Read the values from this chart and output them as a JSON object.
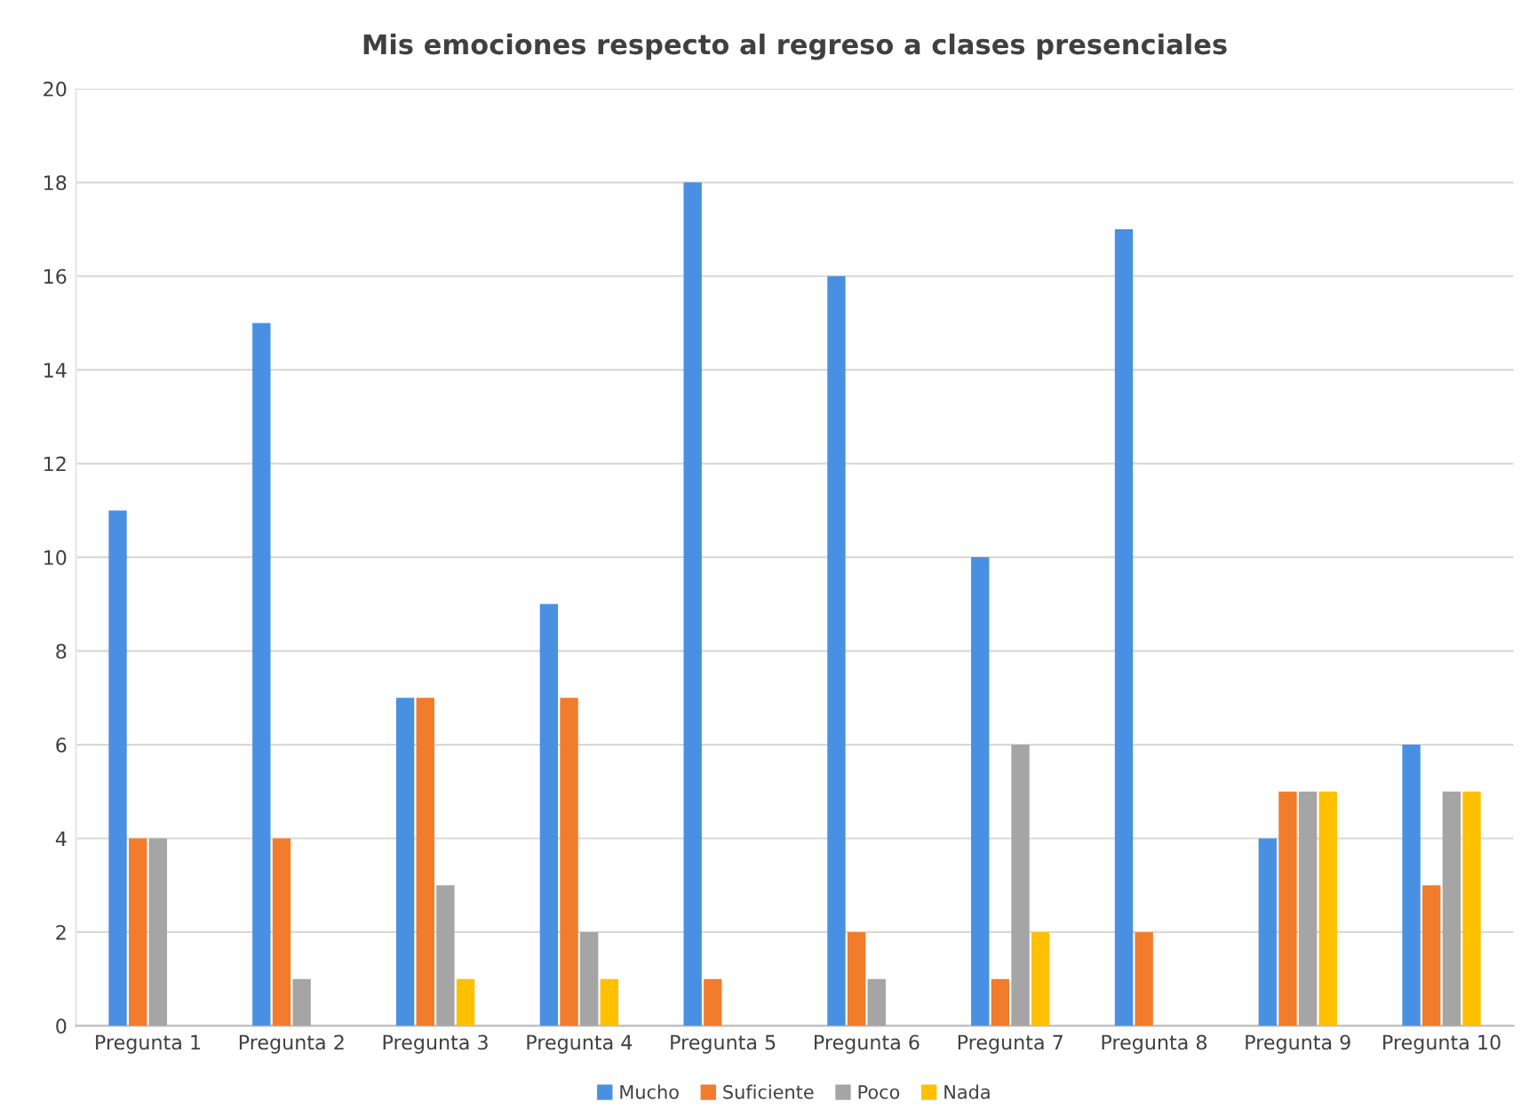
{
  "chart_data": {
    "type": "bar",
    "title": "Mis emociones respecto al regreso a clases presenciales",
    "categories": [
      "Pregunta 1",
      "Pregunta 2",
      "Pregunta 3",
      "Pregunta 4",
      "Pregunta 5",
      "Pregunta 6",
      "Pregunta 7",
      "Pregunta 8",
      "Pregunta 9",
      "Pregunta 10"
    ],
    "series": [
      {
        "name": "Mucho",
        "color": "#4a90e2",
        "values": [
          11,
          15,
          7,
          9,
          18,
          16,
          10,
          17,
          4,
          6
        ]
      },
      {
        "name": "Suficiente",
        "color": "#f07c2c",
        "values": [
          4,
          4,
          7,
          7,
          1,
          2,
          1,
          2,
          5,
          3
        ]
      },
      {
        "name": "Poco",
        "color": "#a5a5a5",
        "values": [
          4,
          1,
          3,
          2,
          0,
          1,
          6,
          0,
          5,
          5
        ]
      },
      {
        "name": "Nada",
        "color": "#ffc000",
        "values": [
          0,
          0,
          1,
          1,
          0,
          0,
          2,
          0,
          5,
          5
        ]
      }
    ],
    "ylim": [
      0,
      20
    ],
    "yticks": [
      0,
      2,
      4,
      6,
      8,
      10,
      12,
      14,
      16,
      18,
      20
    ],
    "grid": "y",
    "legend": "bottom"
  }
}
